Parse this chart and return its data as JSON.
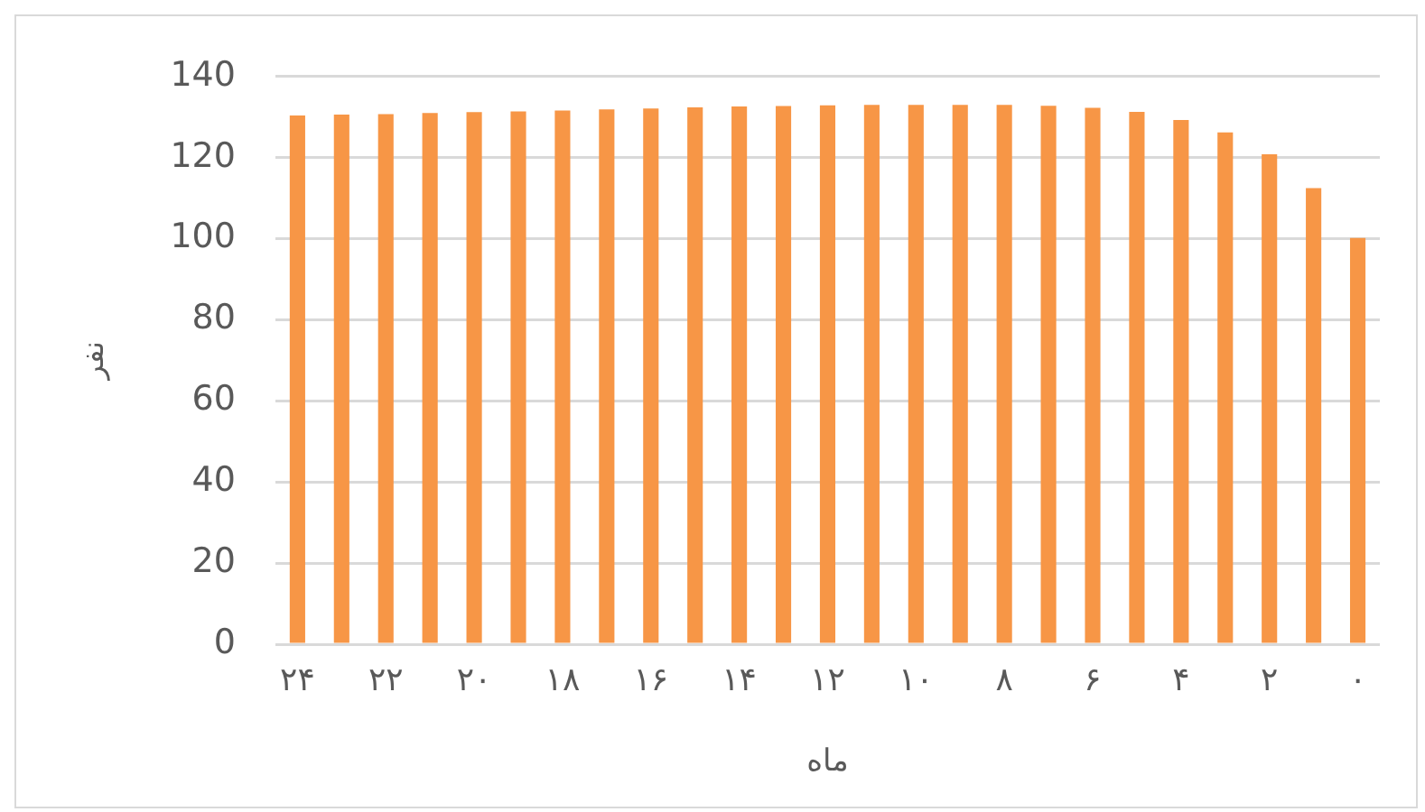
{
  "chart_data": {
    "type": "bar",
    "xlabel": "ماه",
    "ylabel": "نفر",
    "categories": [
      "۲۴",
      null,
      "۲۲",
      null,
      "۲۰",
      null,
      "۱۸",
      null,
      "۱۶",
      null,
      "۱۴",
      null,
      "۱۲",
      null,
      "۱۰",
      null,
      "۸",
      null,
      "۶",
      null,
      "۴",
      null,
      "۲",
      null,
      "۰"
    ],
    "values": [
      130.4,
      130.6,
      130.7,
      131,
      131.2,
      131.4,
      131.6,
      131.9,
      132.1,
      132.4,
      132.6,
      132.7,
      132.9,
      133,
      133,
      133,
      133,
      132.8,
      132.3,
      131.3,
      129.3,
      126.2,
      120.8,
      112.5,
      100.2
    ],
    "color": "#f79646",
    "ylim": [
      0,
      140
    ],
    "yticks": [
      0,
      20,
      40,
      60,
      80,
      100,
      120,
      140
    ],
    "grid": "y",
    "legend": false
  }
}
